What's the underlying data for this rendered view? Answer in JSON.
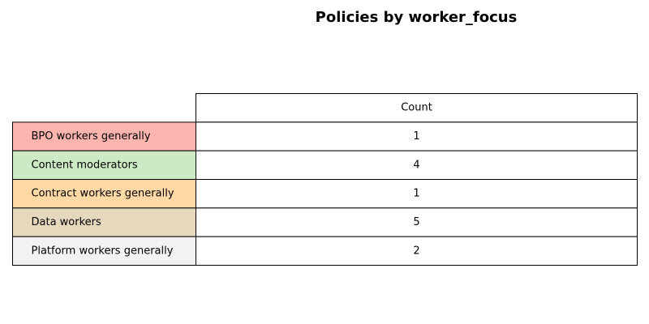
{
  "chart_data": {
    "type": "table",
    "title": "Policies by worker_focus",
    "columns": [
      "Count"
    ],
    "rows": [
      {
        "label": "BPO workers generally",
        "value": 1,
        "color": "#fbb4ae"
      },
      {
        "label": "Content moderators",
        "value": 4,
        "color": "#ccebc5"
      },
      {
        "label": "Contract workers generally",
        "value": 1,
        "color": "#fed9a6"
      },
      {
        "label": "Data workers",
        "value": 5,
        "color": "#e5d8bd"
      },
      {
        "label": "Platform workers generally",
        "value": 2,
        "color": "#f2f2f2"
      }
    ]
  }
}
